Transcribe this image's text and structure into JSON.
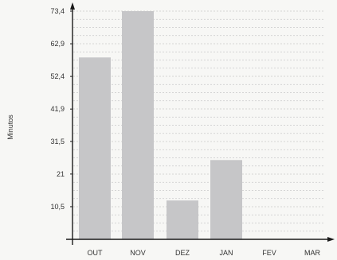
{
  "chart_data": {
    "type": "bar",
    "title": "",
    "xlabel": "",
    "ylabel": "Minutos",
    "categories": [
      "OUT",
      "NOV",
      "DEZ",
      "JAN",
      "FEV",
      "MAR"
    ],
    "values": [
      58.5,
      73.4,
      12.5,
      25.5,
      null,
      null
    ],
    "yticks": [
      "10,5",
      "21",
      "31,5",
      "41,9",
      "52,4",
      "62,9",
      "73,4"
    ],
    "ytick_values": [
      10.5,
      21,
      31.5,
      41.9,
      52.4,
      62.9,
      73.4
    ],
    "ylim": [
      0,
      73.4
    ],
    "grid": true,
    "colors": {
      "bar": "#c6c6c8",
      "axis": "#1a1a1a",
      "grid": "#c9c9c9",
      "background": "#f7f7f5"
    }
  }
}
